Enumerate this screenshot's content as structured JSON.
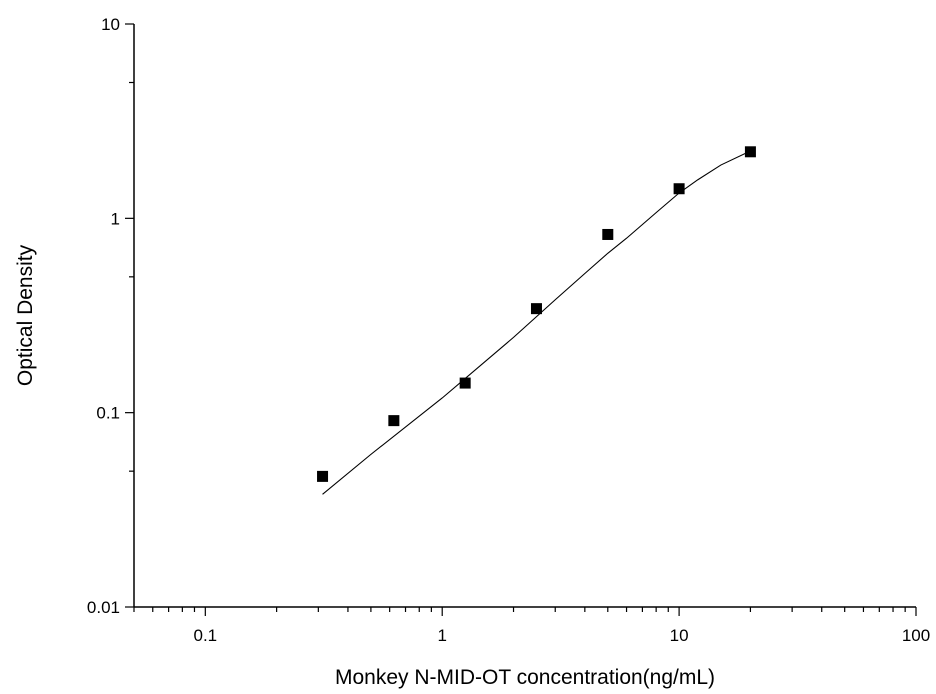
{
  "chart_data": {
    "type": "scatter",
    "title": "",
    "xlabel": "Monkey N-MID-OT concentration(ng/mL)",
    "ylabel": "Optical Density",
    "x_scale": "log",
    "y_scale": "log",
    "xlim": [
      0.05,
      100
    ],
    "ylim": [
      0.01,
      10
    ],
    "x_ticks": [
      0.1,
      1,
      10,
      100
    ],
    "x_tick_labels": [
      "0.1",
      "1",
      "10",
      "100"
    ],
    "y_ticks": [
      0.01,
      0.1,
      1,
      10
    ],
    "y_tick_labels": [
      "0.01",
      "0.1",
      "1",
      "10"
    ],
    "grid": false,
    "legend": "none",
    "marker_color": "#000000",
    "line_color": "#000000",
    "series": [
      {
        "marker": "square",
        "x": [
          0.3125,
          0.625,
          1.25,
          2.5,
          5,
          10,
          20
        ],
        "y": [
          0.047,
          0.091,
          0.142,
          0.343,
          0.826,
          1.42,
          2.2
        ]
      }
    ],
    "fit_curve": {
      "x": [
        0.3125,
        0.5,
        1,
        1.5,
        2,
        3,
        4,
        5,
        6,
        8,
        10,
        12,
        15,
        20
      ],
      "y": [
        0.038,
        0.061,
        0.119,
        0.181,
        0.244,
        0.381,
        0.52,
        0.661,
        0.79,
        1.07,
        1.35,
        1.58,
        1.88,
        2.22
      ]
    }
  }
}
